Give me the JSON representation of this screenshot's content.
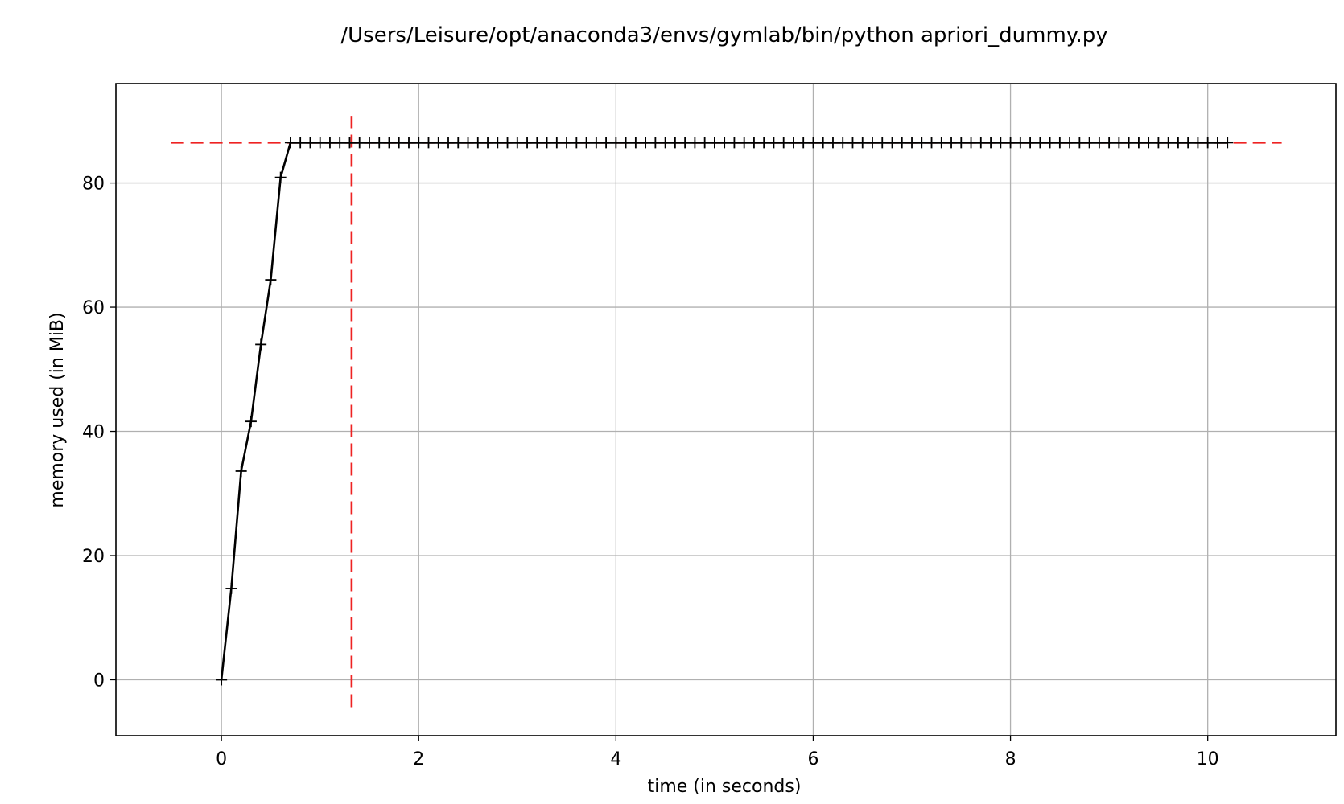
{
  "chart_data": {
    "type": "line",
    "title": "/Users/Leisure/opt/anaconda3/envs/gymlab/bin/python apriori_dummy.py",
    "xlabel": "time (in seconds)",
    "ylabel": "memory used (in MiB)",
    "xlim": [
      -1.07,
      11.3
    ],
    "ylim": [
      -9,
      96
    ],
    "xticks": [
      0,
      2,
      4,
      6,
      8,
      10
    ],
    "yticks": [
      0,
      20,
      40,
      60,
      80
    ],
    "grid": true,
    "series": [
      {
        "marker": "+",
        "color": "#000000",
        "x": [
          0,
          0.1,
          0.2,
          0.3,
          0.4,
          0.5,
          0.6,
          0.7,
          0.8,
          0.9,
          1.0,
          1.1,
          1.2,
          1.3,
          1.4,
          1.5,
          1.6,
          1.7,
          1.8,
          1.9,
          2.0,
          2.1,
          2.2,
          2.3,
          2.4,
          2.5,
          2.6,
          2.7,
          2.8,
          2.9,
          3.0,
          3.1,
          3.2,
          3.3,
          3.4,
          3.5,
          3.6,
          3.7,
          3.8,
          3.9,
          4.0,
          4.1,
          4.2,
          4.3,
          4.4,
          4.5,
          4.6,
          4.7,
          4.8,
          4.9,
          5.0,
          5.1,
          5.2,
          5.3,
          5.4,
          5.5,
          5.6,
          5.7,
          5.8,
          5.9,
          6.0,
          6.1,
          6.2,
          6.3,
          6.4,
          6.5,
          6.6,
          6.7,
          6.8,
          6.9,
          7.0,
          7.1,
          7.2,
          7.3,
          7.4,
          7.5,
          7.6,
          7.7,
          7.8,
          7.9,
          8.0,
          8.1,
          8.2,
          8.3,
          8.4,
          8.5,
          8.6,
          8.7,
          8.8,
          8.9,
          9.0,
          9.1,
          9.2,
          9.3,
          9.4,
          9.5,
          9.6,
          9.7,
          9.8,
          9.9,
          10.0,
          10.1,
          10.2
        ],
        "y": [
          0,
          14.7,
          33.6,
          41.6,
          54.0,
          64.4,
          80.9,
          86.5,
          86.5,
          86.5,
          86.5,
          86.5,
          86.5,
          86.5,
          86.5,
          86.5,
          86.5,
          86.5,
          86.5,
          86.5,
          86.5,
          86.5,
          86.5,
          86.5,
          86.5,
          86.5,
          86.5,
          86.5,
          86.5,
          86.5,
          86.5,
          86.5,
          86.5,
          86.5,
          86.5,
          86.5,
          86.5,
          86.5,
          86.5,
          86.5,
          86.5,
          86.5,
          86.5,
          86.5,
          86.5,
          86.5,
          86.5,
          86.5,
          86.5,
          86.5,
          86.5,
          86.5,
          86.5,
          86.5,
          86.5,
          86.5,
          86.5,
          86.5,
          86.5,
          86.5,
          86.5,
          86.5,
          86.5,
          86.5,
          86.5,
          86.5,
          86.5,
          86.5,
          86.5,
          86.5,
          86.5,
          86.5,
          86.5,
          86.5,
          86.5,
          86.5,
          86.5,
          86.5,
          86.5,
          86.5,
          86.5,
          86.5,
          86.5,
          86.5,
          86.5,
          86.5,
          86.5,
          86.5,
          86.5,
          86.5,
          86.5,
          86.5,
          86.5,
          86.5,
          86.5,
          86.5,
          86.5,
          86.5,
          86.5,
          86.5,
          86.5,
          86.5,
          86.5
        ]
      }
    ],
    "reference_lines": [
      {
        "orientation": "horizontal",
        "y": 86.5,
        "x_from": -0.51,
        "x_to": 10.75,
        "color": "#ee2222",
        "style": "dashed"
      },
      {
        "orientation": "vertical",
        "x": 1.32,
        "y_from": -4.4,
        "y_to": 90.8,
        "color": "#ee2222",
        "style": "dashed"
      }
    ]
  }
}
